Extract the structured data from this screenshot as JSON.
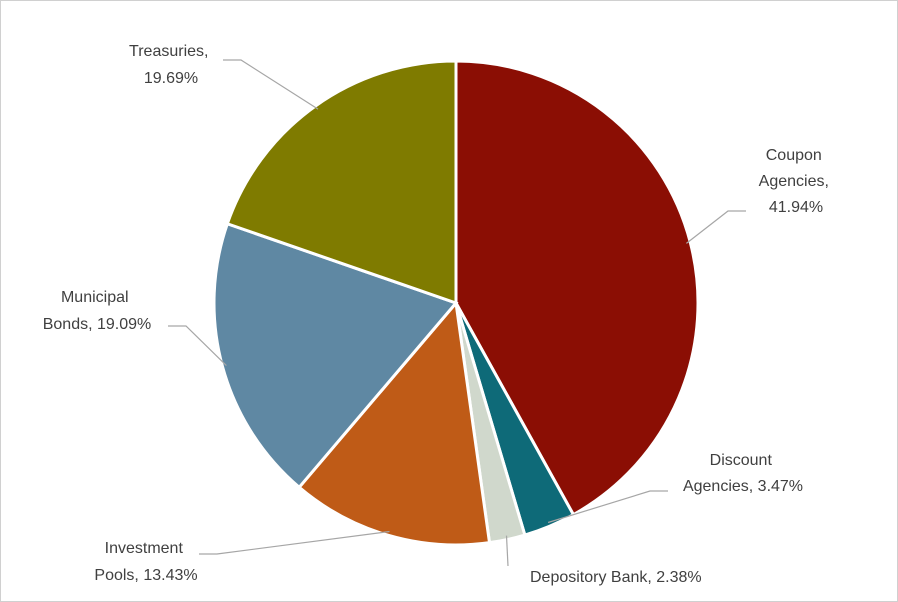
{
  "chart_data": {
    "type": "pie",
    "title": "",
    "slices": [
      {
        "name": "Coupon Agencies",
        "value": 41.94,
        "label_lines": [
          "Coupon",
          "Agencies,",
          "41.94%"
        ],
        "color": "#8B0E04"
      },
      {
        "name": "Discount Agencies",
        "value": 3.47,
        "label_lines": [
          "Discount",
          "Agencies, 3.47%"
        ],
        "color": "#0E6A78"
      },
      {
        "name": "Depository Bank",
        "value": 2.38,
        "label_lines": [
          "Depository Bank, 2.38%"
        ],
        "color": "#D0D8CC"
      },
      {
        "name": "Investment Pools",
        "value": 13.43,
        "label_lines": [
          "Investment",
          "Pools, 13.43%"
        ],
        "color": "#BF5B17"
      },
      {
        "name": "Municipal Bonds",
        "value": 19.09,
        "label_lines": [
          "Municipal",
          "Bonds, 19.09%"
        ],
        "color": "#5F88A3"
      },
      {
        "name": "Treasuries",
        "value": 19.69,
        "label_lines": [
          "Treasuries,",
          "19.69%"
        ],
        "color": "#7F7B00"
      }
    ]
  }
}
